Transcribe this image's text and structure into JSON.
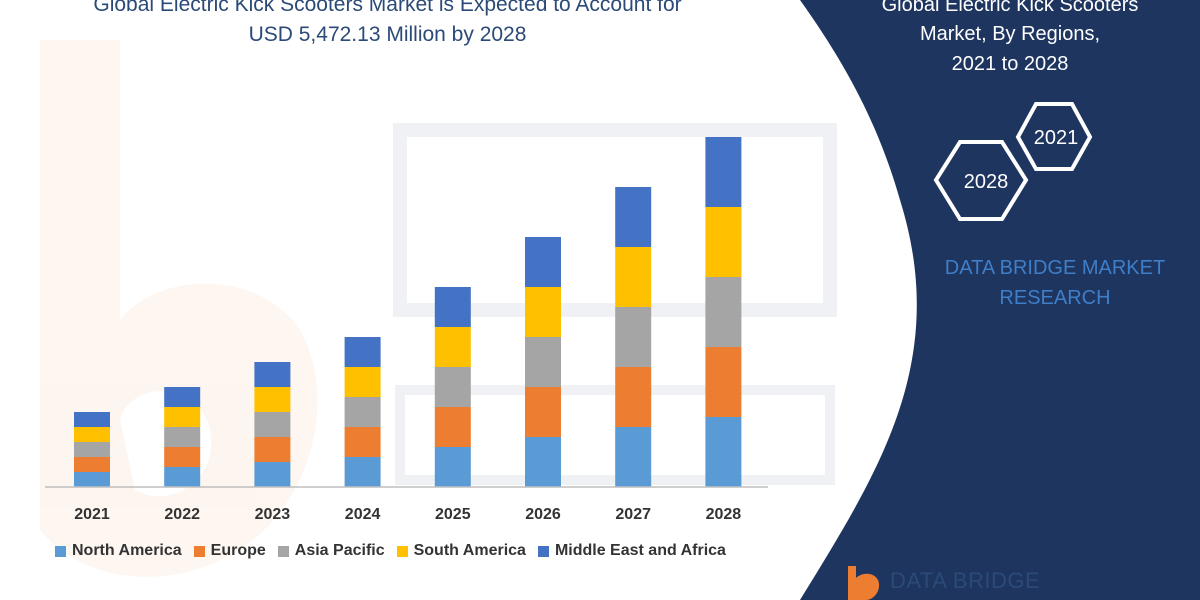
{
  "header": {
    "title_line1": "Global Electric Kick Scooters Market is Expected to Account for",
    "title_line2": "USD 5,472.13 Million by 2028"
  },
  "panel": {
    "title_line1": "Global Electric Kick Scooters",
    "title_line2": "Market, By Regions,",
    "title_line3": "2021 to 2028",
    "hex_badge_top": "2021",
    "hex_badge_bottom": "2028",
    "brand_line1": "DATA BRIDGE MARKET",
    "brand_line2": "RESEARCH",
    "background_color": "#1e3560"
  },
  "logo": {
    "text": "DATA BRIDGE"
  },
  "chart_data": {
    "type": "bar",
    "stacked": true,
    "categories": [
      "2021",
      "2022",
      "2023",
      "2024",
      "2025",
      "2026",
      "2027",
      "2028"
    ],
    "series": [
      {
        "name": "North America",
        "color": "#5b9bd5",
        "values": [
          15,
          20,
          25,
          30,
          40,
          50,
          60,
          70
        ]
      },
      {
        "name": "Europe",
        "color": "#ed7d31",
        "values": [
          15,
          20,
          25,
          30,
          40,
          50,
          60,
          70
        ]
      },
      {
        "name": "Asia Pacific",
        "color": "#a5a5a5",
        "values": [
          15,
          20,
          25,
          30,
          40,
          50,
          60,
          70
        ]
      },
      {
        "name": "South America",
        "color": "#ffc000",
        "values": [
          15,
          20,
          25,
          30,
          40,
          50,
          60,
          70
        ]
      },
      {
        "name": "Middle East and Africa",
        "color": "#4472c4",
        "values": [
          15,
          20,
          25,
          30,
          40,
          50,
          60,
          70
        ]
      }
    ],
    "ylim": [
      0,
      354
    ],
    "grid": false,
    "legend_position": "bottom"
  }
}
